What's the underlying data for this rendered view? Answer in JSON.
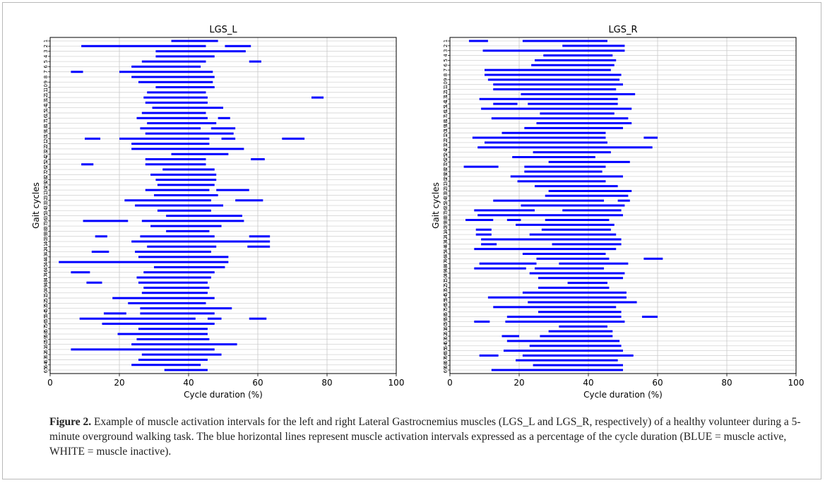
{
  "chart_data": [
    {
      "type": "bar",
      "subtype": "interval",
      "title": "LGS_L",
      "xlabel": "Cycle duration (%)",
      "ylabel": "Gait cycles",
      "xlim": [
        0,
        100
      ],
      "xticks": [
        0,
        20,
        40,
        60,
        80,
        100
      ],
      "ylim": [
        1,
        65
      ],
      "grid": true,
      "color": "#0000ff",
      "intervals": [
        [
          [
            35,
            48.5
          ]
        ],
        [
          [
            9,
            45
          ],
          [
            50.5,
            58
          ]
        ],
        [
          [
            30.5,
            56.5
          ]
        ],
        [
          [
            30.5,
            47.5
          ]
        ],
        [
          [
            26.5,
            45
          ],
          [
            57.5,
            61
          ]
        ],
        [
          [
            23.5,
            43.5
          ]
        ],
        [
          [
            6,
            9.5
          ],
          [
            20,
            47
          ]
        ],
        [
          [
            23.5,
            47.5
          ]
        ],
        [
          [
            25.5,
            47
          ]
        ],
        [
          [
            30.5,
            47.5
          ]
        ],
        [
          [
            28,
            45
          ]
        ],
        [
          [
            27,
            45.5
          ],
          [
            75.5,
            79
          ]
        ],
        [
          [
            27.5,
            45.5
          ]
        ],
        [
          [
            29.5,
            50
          ]
        ],
        [
          [
            26.5,
            45
          ]
        ],
        [
          [
            25,
            45.5
          ],
          [
            48.5,
            52
          ]
        ],
        [
          [
            28,
            48
          ]
        ],
        [
          [
            26,
            43.5
          ],
          [
            46.5,
            53.5
          ]
        ],
        [
          [
            27.5,
            53
          ]
        ],
        [
          [
            10,
            14.5
          ],
          [
            20,
            46
          ],
          [
            49.5,
            53.5
          ],
          [
            67,
            73.5
          ]
        ],
        [
          [
            23.5,
            46
          ]
        ],
        [
          [
            23.5,
            56
          ]
        ],
        [
          [
            35,
            51.5
          ]
        ],
        [
          [
            27.5,
            45
          ],
          [
            58,
            62
          ]
        ],
        [
          [
            9,
            12.5
          ],
          [
            27.5,
            45
          ]
        ],
        [
          [
            32.5,
            47.5
          ]
        ],
        [
          [
            29,
            48
          ]
        ],
        [
          [
            30.5,
            48
          ]
        ],
        [
          [
            31,
            47.5
          ]
        ],
        [
          [
            27.5,
            46
          ],
          [
            48,
            57.5
          ]
        ],
        [
          [
            30,
            48.5
          ]
        ],
        [
          [
            21.5,
            46.5
          ],
          [
            53.5,
            61.5
          ]
        ],
        [
          [
            24.5,
            50
          ]
        ],
        [
          [
            31,
            46.5
          ]
        ],
        [
          [
            33.5,
            55.5
          ]
        ],
        [
          [
            9.5,
            22.5
          ],
          [
            26.5,
            56
          ]
        ],
        [
          [
            29,
            49.5
          ]
        ],
        [
          [
            33.5,
            46
          ]
        ],
        [
          [
            13,
            16.5
          ],
          [
            26,
            47.5
          ],
          [
            57.5,
            63.5
          ]
        ],
        [
          [
            23.5,
            63.5
          ]
        ],
        [
          [
            28,
            48
          ],
          [
            57,
            63.5
          ]
        ],
        [
          [
            12,
            17
          ],
          [
            24.5,
            46.5
          ]
        ],
        [
          [
            25.5,
            51.5
          ]
        ],
        [
          [
            2.5,
            51.5
          ]
        ],
        [
          [
            30,
            50.5
          ]
        ],
        [
          [
            6,
            11.5
          ],
          [
            27,
            47.5
          ]
        ],
        [
          [
            25,
            46.5
          ]
        ],
        [
          [
            10.5,
            15
          ],
          [
            25.5,
            45.5
          ]
        ],
        [
          [
            27,
            46
          ]
        ],
        [
          [
            26.5,
            45.5
          ]
        ],
        [
          [
            18,
            47.5
          ]
        ],
        [
          [
            22.5,
            45
          ]
        ],
        [
          [
            26,
            52.5
          ]
        ],
        [
          [
            15.5,
            22
          ],
          [
            26,
            47.5
          ]
        ],
        [
          [
            8.5,
            42
          ],
          [
            45.5,
            49.5
          ],
          [
            57.5,
            62.5
          ]
        ],
        [
          [
            15,
            47.5
          ]
        ],
        [
          [
            25.5,
            45.5
          ]
        ],
        [
          [
            19.5,
            45.5
          ]
        ],
        [
          [
            25,
            46
          ]
        ],
        [
          [
            23.5,
            54
          ]
        ],
        [
          [
            6,
            47.5
          ]
        ],
        [
          [
            26.5,
            49.5
          ]
        ],
        [
          [
            25.5,
            45.5
          ]
        ],
        [
          [
            23.5,
            43.5
          ]
        ],
        [
          [
            33,
            45.5
          ]
        ]
      ]
    },
    {
      "type": "bar",
      "subtype": "interval",
      "title": "LGS_R",
      "xlabel": "Cycle duration (%)",
      "ylabel": "Gait cycles",
      "xlim": [
        0,
        100
      ],
      "xticks": [
        0,
        20,
        40,
        60,
        80,
        100
      ],
      "ylim": [
        1,
        69
      ],
      "grid": true,
      "color": "#0000ff",
      "intervals": [
        [
          [
            5.5,
            11
          ],
          [
            21,
            45.5
          ]
        ],
        [
          [
            32.5,
            50.5
          ]
        ],
        [
          [
            9.5,
            50.5
          ]
        ],
        [
          [
            27,
            47
          ]
        ],
        [
          [
            24.5,
            48
          ]
        ],
        [
          [
            23.5,
            47.5
          ]
        ],
        [
          [
            10,
            46.5
          ]
        ],
        [
          [
            10,
            49.5
          ]
        ],
        [
          [
            11,
            49
          ]
        ],
        [
          [
            12.5,
            50
          ]
        ],
        [
          [
            12.5,
            48
          ]
        ],
        [
          [
            20.5,
            53.5
          ]
        ],
        [
          [
            8.5,
            48.5
          ]
        ],
        [
          [
            12.5,
            19.5
          ],
          [
            22.5,
            48.5
          ]
        ],
        [
          [
            9,
            52.5
          ]
        ],
        [
          [
            26,
            47.5
          ]
        ],
        [
          [
            12,
            51.5
          ]
        ],
        [
          [
            25,
            52.5
          ]
        ],
        [
          [
            21.5,
            50
          ]
        ],
        [
          [
            15,
            45
          ]
        ],
        [
          [
            6.5,
            45
          ],
          [
            56,
            60
          ]
        ],
        [
          [
            10,
            45.5
          ]
        ],
        [
          [
            8,
            58.5
          ]
        ],
        [
          [
            24,
            46.5
          ]
        ],
        [
          [
            18,
            42
          ]
        ],
        [
          [
            28.5,
            52
          ]
        ],
        [
          [
            4,
            14
          ],
          [
            21.5,
            45
          ]
        ],
        [
          [
            21.5,
            44
          ]
        ],
        [
          [
            17.5,
            50
          ]
        ],
        [
          [
            19.5,
            45
          ]
        ],
        [
          [
            24.5,
            48.5
          ]
        ],
        [
          [
            28.5,
            52.5
          ]
        ],
        [
          [
            27.5,
            51.5
          ]
        ],
        [
          [
            12.5,
            44.5
          ],
          [
            48.5,
            52
          ]
        ],
        [
          [
            20.5,
            50.5
          ]
        ],
        [
          [
            7,
            24.5
          ],
          [
            32.5,
            49.5
          ]
        ],
        [
          [
            8,
            50
          ]
        ],
        [
          [
            4.5,
            12.5
          ],
          [
            16.5,
            20.5
          ],
          [
            27.5,
            46
          ]
        ],
        [
          [
            19,
            47.5
          ]
        ],
        [
          [
            7.5,
            12
          ],
          [
            26.5,
            46.5
          ]
        ],
        [
          [
            7.5,
            12
          ],
          [
            23,
            48
          ]
        ],
        [
          [
            9,
            49.5
          ]
        ],
        [
          [
            9,
            13.5
          ],
          [
            29.5,
            49.5
          ]
        ],
        [
          [
            7,
            48
          ]
        ],
        [
          [
            21,
            45
          ]
        ],
        [
          [
            25,
            46
          ],
          [
            56,
            61.5
          ]
        ],
        [
          [
            8.5,
            25
          ],
          [
            31.5,
            51.5
          ]
        ],
        [
          [
            7,
            22
          ],
          [
            24.5,
            44.5
          ]
        ],
        [
          [
            23,
            50.5
          ]
        ],
        [
          [
            25.5,
            50
          ]
        ],
        [
          [
            34,
            45.5
          ]
        ],
        [
          [
            25.5,
            46
          ]
        ],
        [
          [
            21,
            51
          ]
        ],
        [
          [
            11,
            51
          ]
        ],
        [
          [
            22.5,
            54
          ]
        ],
        [
          [
            12.5,
            48
          ]
        ],
        [
          [
            25.5,
            49.5
          ]
        ],
        [
          [
            16.5,
            49.5
          ],
          [
            55.5,
            60
          ]
        ],
        [
          [
            7,
            11.5
          ],
          [
            16,
            50.5
          ]
        ],
        [
          [
            31.5,
            45.5
          ]
        ],
        [
          [
            28.5,
            47
          ]
        ],
        [
          [
            15,
            20
          ],
          [
            26,
            47
          ]
        ],
        [
          [
            16.5,
            49
          ]
        ],
        [
          [
            23,
            49.5
          ]
        ],
        [
          [
            15.5,
            50
          ]
        ],
        [
          [
            8.5,
            14
          ],
          [
            21,
            53
          ]
        ],
        [
          [
            19,
            48.5
          ]
        ],
        [
          [
            24,
            50
          ]
        ],
        [
          [
            12,
            50
          ]
        ]
      ]
    }
  ],
  "caption": {
    "label": "Figure 2.",
    "text": " Example of muscle activation intervals for the left and right Lateral Gastrocnemius muscles (LGS_L and LGS_R, respectively) of a healthy volunteer during a 5-minute overground walking task. The blue horizontal lines represent muscle activation intervals expressed as a percentage of the cycle duration (BLUE = muscle active, WHITE = muscle inactive)."
  }
}
